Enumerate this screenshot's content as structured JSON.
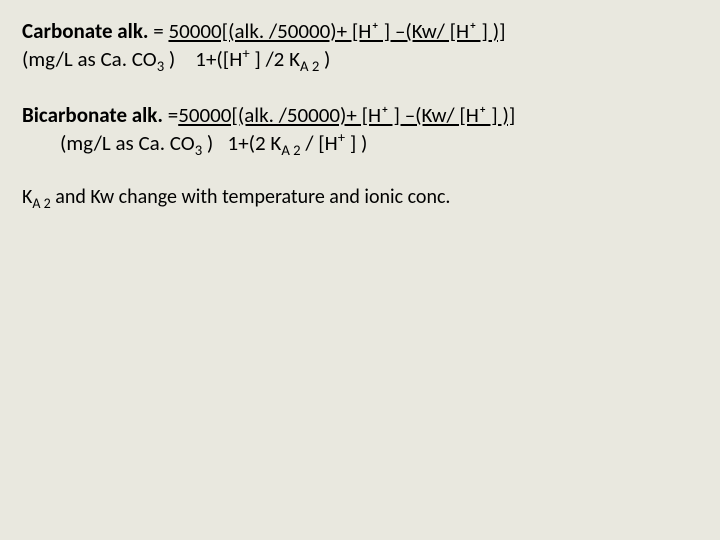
{
  "carbonate": {
    "title_label": "Carbonate alk. ",
    "eq_top": "= ",
    "eq_top_ul": "50000[(alk. /50000)+ [H⁺ ] –(Kw/ [H⁺ ] )]",
    "unit_prefix": "(mg/L ",
    "unit_mid": "as Ca. CO",
    "unit_sub": "3",
    "unit_close": " )",
    "denom_prefix": "1+(",
    "denom_h": "[H",
    "denom_hplus": "+",
    "denom_mid": " ] /2 K",
    "denom_asub": "A 2",
    "denom_close": " )"
  },
  "bicarbonate": {
    "title_label": "Bicarbonate alk. ",
    "eq_top_eq": "=",
    "eq_top_ul": "50000[(alk. /50000)+ [H⁺ ] –(Kw/ [H⁺ ] )]",
    "unit_prefix": "(mg/L ",
    "unit_mid": "as Ca. CO",
    "unit_sub": "3",
    "unit_close": " )",
    "denom_prefix": "1+(",
    "denom_two": "2 K",
    "denom_asub": "A 2",
    "denom_mid": " / [H",
    "denom_hplus": "+",
    "denom_close": " ] )"
  },
  "footnote": {
    "k_prefix": "K",
    "k_sub": "A 2",
    "rest": " and  Kw change with temperature and ionic conc."
  }
}
